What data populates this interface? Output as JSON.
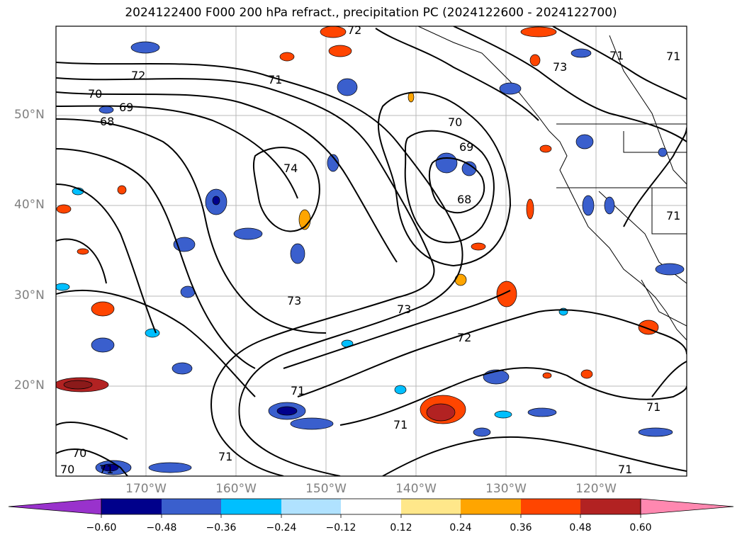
{
  "title": "2024122400 F000 200 hPa refract., precipitation PC (2024122600 - 2024122700)",
  "latitude_labels": [
    "50°N",
    "40°N",
    "30°N",
    "20°N"
  ],
  "longitude_labels": [
    "170°W",
    "160°W",
    "150°W",
    "140°W",
    "130°W",
    "120°W"
  ],
  "contour_labels": [
    "72",
    "72",
    "71",
    "70",
    "69",
    "68",
    "74",
    "70",
    "69",
    "68",
    "73",
    "73",
    "72",
    "71",
    "71",
    "71",
    "71",
    "71",
    "70",
    "70",
    "71",
    "73",
    "71",
    "71",
    "71"
  ],
  "colorbar": {
    "tick_labels": [
      "−0.60",
      "−0.48",
      "−0.36",
      "−0.24",
      "−0.12",
      "0.12",
      "0.24",
      "0.36",
      "0.48",
      "0.60"
    ],
    "colors": [
      "#9932CC",
      "#00008B",
      "#3A5FCD",
      "#00BFFF",
      "#B0E2FF",
      "#FFFFFF",
      "#FFE78A",
      "#FFA500",
      "#FF4500",
      "#B22222",
      "#FF88B0"
    ]
  },
  "colors": {
    "contour": "#000000",
    "grid": "#b0b0b0",
    "axis_label": "#808080"
  }
}
